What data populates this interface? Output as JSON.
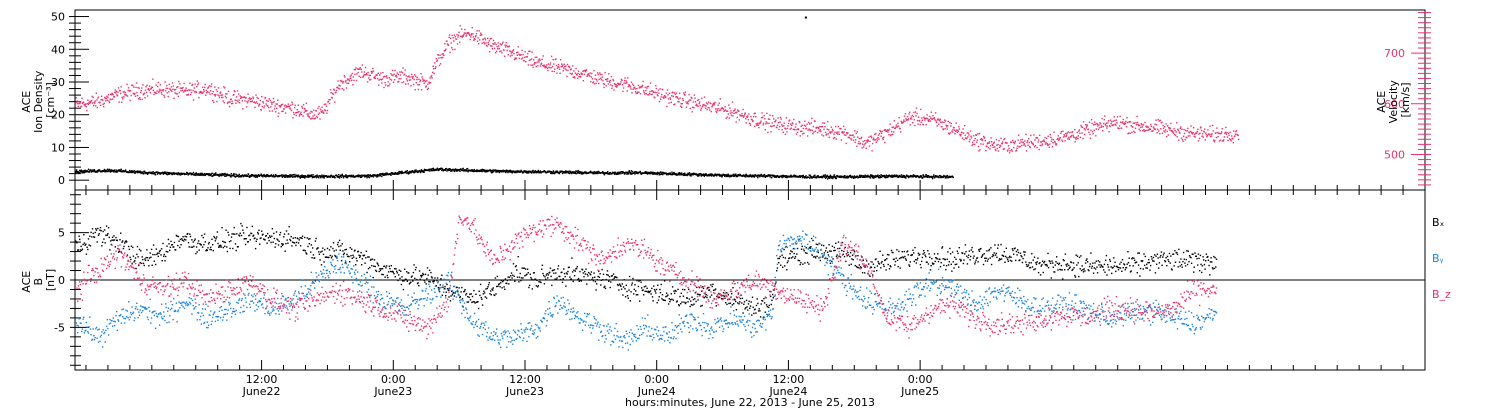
{
  "chart_data": [
    {
      "type": "scatter",
      "panel": "top",
      "ylabel_left": [
        "ACE",
        "Ion Density",
        "[cm⁻³]"
      ],
      "ylabel_right": [
        "ACE",
        "Velocity",
        "[km/s]"
      ],
      "ylim_left": [
        -3,
        52
      ],
      "ylim_right": [
        430,
        785
      ],
      "yticks_left": [
        0,
        10,
        20,
        30,
        40,
        50
      ],
      "yticks_right": [
        500,
        600,
        700
      ],
      "colors": {
        "density": "#000000",
        "velocity": "#e8336a"
      },
      "series": [
        {
          "axis": "left",
          "color": "#000000",
          "anchors": [
            [
              0,
              2.8
            ],
            [
              3,
              3.2
            ],
            [
              6,
              2.6
            ],
            [
              9,
              2.2
            ],
            [
              12,
              1.9
            ],
            [
              15,
              1.6
            ],
            [
              18,
              1.5
            ],
            [
              21,
              1.4
            ],
            [
              24,
              1.4
            ],
            [
              27,
              1.5
            ],
            [
              30,
              2.6
            ],
            [
              33,
              3.5
            ],
            [
              36,
              3.2
            ],
            [
              39,
              2.9
            ],
            [
              42,
              2.8
            ],
            [
              45,
              2.6
            ],
            [
              48,
              2.4
            ],
            [
              51,
              2.5
            ],
            [
              54,
              2.2
            ],
            [
              57,
              1.9
            ],
            [
              60,
              1.6
            ],
            [
              63,
              1.5
            ],
            [
              66,
              1.3
            ],
            [
              69,
              1.2
            ],
            [
              72,
              1.3
            ],
            [
              75,
              1.4
            ],
            [
              78,
              1.3
            ],
            [
              80,
              1.2
            ]
          ]
        },
        {
          "axis": "right",
          "color": "#e8336a",
          "anchors": [
            [
              0,
              600
            ],
            [
              2,
              605
            ],
            [
              4,
              620
            ],
            [
              6,
              628
            ],
            [
              8,
              630
            ],
            [
              10,
              625
            ],
            [
              12,
              632
            ],
            [
              14,
              612
            ],
            [
              16,
              608
            ],
            [
              18,
              598
            ],
            [
              20,
              592
            ],
            [
              21.5,
              580
            ],
            [
              22.5,
              582
            ],
            [
              24,
              640
            ],
            [
              26,
              665
            ],
            [
              28,
              650
            ],
            [
              30,
              655
            ],
            [
              32,
              640
            ],
            [
              33,
              685
            ],
            [
              34,
              720
            ],
            [
              35,
              735
            ],
            [
              36,
              740
            ],
            [
              37,
              728
            ],
            [
              38,
              715
            ],
            [
              40,
              700
            ],
            [
              42,
              682
            ],
            [
              44,
              672
            ],
            [
              46,
              662
            ],
            [
              48,
              648
            ],
            [
              50,
              640
            ],
            [
              52,
              628
            ],
            [
              54,
              615
            ],
            [
              56,
              605
            ],
            [
              58,
              595
            ],
            [
              60,
              585
            ],
            [
              62,
              570
            ],
            [
              64,
              560
            ],
            [
              66,
              555
            ],
            [
              68,
              552
            ],
            [
              70,
              545
            ],
            [
              71,
              535
            ],
            [
              72,
              522
            ],
            [
              74,
              545
            ],
            [
              76,
              575
            ],
            [
              78,
              570
            ],
            [
              80,
              552
            ],
            [
              82,
              530
            ],
            [
              84,
              518
            ],
            [
              86,
              522
            ],
            [
              88,
              528
            ],
            [
              90,
              535
            ],
            [
              92,
              548
            ],
            [
              94,
              560
            ],
            [
              95,
              565
            ],
            [
              96,
              560
            ],
            [
              98,
              555
            ],
            [
              100,
              548
            ],
            [
              102,
              542
            ],
            [
              104,
              540
            ],
            [
              106,
              545
            ]
          ]
        }
      ]
    },
    {
      "type": "scatter",
      "panel": "bottom",
      "ylabel_left": [
        "ACE",
        "B",
        "[nT]"
      ],
      "ylim": [
        -9.5,
        9.5
      ],
      "yticks": [
        -5,
        0,
        5
      ],
      "zero_line": true,
      "legend": [
        "Bₓ",
        "Bᵧ",
        "B_z"
      ],
      "legend_placement": "right",
      "series": [
        {
          "name": "Bₓ",
          "color": "#000000",
          "anchors": [
            [
              0,
              3.5
            ],
            [
              2,
              5
            ],
            [
              4,
              4
            ],
            [
              6,
              2
            ],
            [
              8,
              3
            ],
            [
              9.5,
              4.5
            ],
            [
              11,
              4
            ],
            [
              13,
              4
            ],
            [
              15,
              4.5
            ],
            [
              17,
              4.5
            ],
            [
              19,
              4.5
            ],
            [
              20.5,
              4.2
            ],
            [
              22,
              3.2
            ],
            [
              24,
              3
            ],
            [
              26,
              2.5
            ],
            [
              28,
              1.2
            ],
            [
              30,
              0.5
            ],
            [
              32,
              0.3
            ],
            [
              34,
              -1
            ],
            [
              36,
              -2
            ],
            [
              38,
              -1
            ],
            [
              40,
              1
            ],
            [
              42,
              0
            ],
            [
              44,
              1
            ],
            [
              46,
              0.5
            ],
            [
              48,
              0.2
            ],
            [
              50,
              -0.5
            ],
            [
              52,
              -1
            ],
            [
              54,
              -1.5
            ],
            [
              56,
              -2
            ],
            [
              58,
              -1
            ],
            [
              60,
              -2
            ],
            [
              62,
              -3
            ],
            [
              63.5,
              -2
            ],
            [
              64,
              2
            ],
            [
              66,
              3
            ],
            [
              68,
              3.2
            ],
            [
              70,
              2.8
            ],
            [
              72,
              1.5
            ],
            [
              74,
              2
            ],
            [
              76,
              2.5
            ],
            [
              78,
              2.7
            ],
            [
              80,
              2.2
            ],
            [
              82,
              2.8
            ],
            [
              84,
              3
            ],
            [
              86,
              2.5
            ],
            [
              88,
              1.5
            ],
            [
              90,
              1.8
            ],
            [
              92,
              1.5
            ],
            [
              94,
              1.5
            ],
            [
              96,
              1.5
            ],
            [
              98,
              2
            ],
            [
              100,
              2.2
            ],
            [
              102,
              2
            ],
            [
              104,
              2
            ]
          ]
        },
        {
          "name": "Bᵧ",
          "color": "#1a84dc",
          "anchors": [
            [
              0,
              -4
            ],
            [
              2,
              -6
            ],
            [
              4,
              -4
            ],
            [
              6,
              -3
            ],
            [
              8,
              -4
            ],
            [
              10,
              -2
            ],
            [
              12,
              -4
            ],
            [
              14,
              -3
            ],
            [
              16,
              -2
            ],
            [
              18,
              -3
            ],
            [
              20,
              -2
            ],
            [
              22,
              0
            ],
            [
              24,
              2
            ],
            [
              26,
              0
            ],
            [
              28,
              -2
            ],
            [
              30,
              -3
            ],
            [
              32,
              -1.5
            ],
            [
              34,
              0
            ],
            [
              36,
              -4
            ],
            [
              38,
              -6
            ],
            [
              40,
              -6
            ],
            [
              42,
              -5
            ],
            [
              44,
              -2
            ],
            [
              46,
              -4
            ],
            [
              48,
              -5
            ],
            [
              50,
              -6.5
            ],
            [
              52,
              -5
            ],
            [
              54,
              -6
            ],
            [
              56,
              -4
            ],
            [
              58,
              -5
            ],
            [
              60,
              -4
            ],
            [
              62,
              -5
            ],
            [
              63.5,
              -3.5
            ],
            [
              64,
              3.5
            ],
            [
              66,
              4.5
            ],
            [
              68,
              3
            ],
            [
              70,
              0
            ],
            [
              72,
              -2
            ],
            [
              74,
              -3
            ],
            [
              76,
              -2
            ],
            [
              78,
              0
            ],
            [
              80,
              -1
            ],
            [
              82,
              -2.5
            ],
            [
              84,
              -1
            ],
            [
              86,
              -2
            ],
            [
              88,
              -3
            ],
            [
              90,
              -2.5
            ],
            [
              92,
              -3
            ],
            [
              94,
              -4
            ],
            [
              96,
              -3.5
            ],
            [
              98,
              -3
            ],
            [
              100,
              -4
            ],
            [
              102,
              -4.5
            ],
            [
              104,
              -3.5
            ]
          ]
        },
        {
          "name": "B_z",
          "color": "#e8336a",
          "anchors": [
            [
              0,
              -1
            ],
            [
              2,
              1
            ],
            [
              4,
              3
            ],
            [
              6,
              0
            ],
            [
              8,
              -1
            ],
            [
              10,
              0
            ],
            [
              12,
              -2
            ],
            [
              14,
              -1
            ],
            [
              16,
              0
            ],
            [
              18,
              -2
            ],
            [
              20,
              -3
            ],
            [
              22,
              -2
            ],
            [
              24,
              -1
            ],
            [
              26,
              -2
            ],
            [
              28,
              -3
            ],
            [
              30,
              -4
            ],
            [
              32,
              -5
            ],
            [
              34,
              -2
            ],
            [
              35,
              7
            ],
            [
              36,
              6
            ],
            [
              38,
              2
            ],
            [
              40,
              4
            ],
            [
              42,
              5.5
            ],
            [
              44,
              6
            ],
            [
              46,
              4
            ],
            [
              48,
              2
            ],
            [
              50,
              4
            ],
            [
              52,
              3
            ],
            [
              54,
              1
            ],
            [
              56,
              0
            ],
            [
              58,
              -2
            ],
            [
              60,
              -1
            ],
            [
              62,
              0
            ],
            [
              64,
              -1
            ],
            [
              66,
              -2
            ],
            [
              68,
              -3
            ],
            [
              70,
              4
            ],
            [
              72,
              2
            ],
            [
              74,
              -4
            ],
            [
              76,
              -5
            ],
            [
              78,
              -3
            ],
            [
              80,
              -2.5
            ],
            [
              82,
              -4
            ],
            [
              84,
              -4.5
            ],
            [
              86,
              -4.5
            ],
            [
              88,
              -4
            ],
            [
              90,
              -3.5
            ],
            [
              92,
              -4
            ],
            [
              94,
              -3
            ],
            [
              96,
              -3
            ],
            [
              98,
              -3.5
            ],
            [
              100,
              -3
            ],
            [
              102,
              -1
            ],
            [
              104,
              -1
            ]
          ]
        }
      ]
    }
  ],
  "x_axis": {
    "range_hours": [
      0,
      123
    ],
    "ticks": [
      {
        "hour": 17,
        "time": "12:00",
        "date": "June22"
      },
      {
        "hour": 29,
        "time": "0:00",
        "date": "June23"
      },
      {
        "hour": 41,
        "time": "12:00",
        "date": "June23"
      },
      {
        "hour": 53,
        "time": "0:00",
        "date": "June24"
      },
      {
        "hour": 65,
        "time": "12:00",
        "date": "June24"
      },
      {
        "hour": 77,
        "time": "0:00",
        "date": "June25"
      }
    ],
    "xlabel": "hours:minutes, June 22, 2013 - June 25, 2013"
  },
  "misc_marks": [
    {
      "hour": 66.5,
      "value": 50,
      "axis": "left",
      "color": "#000000"
    }
  ]
}
